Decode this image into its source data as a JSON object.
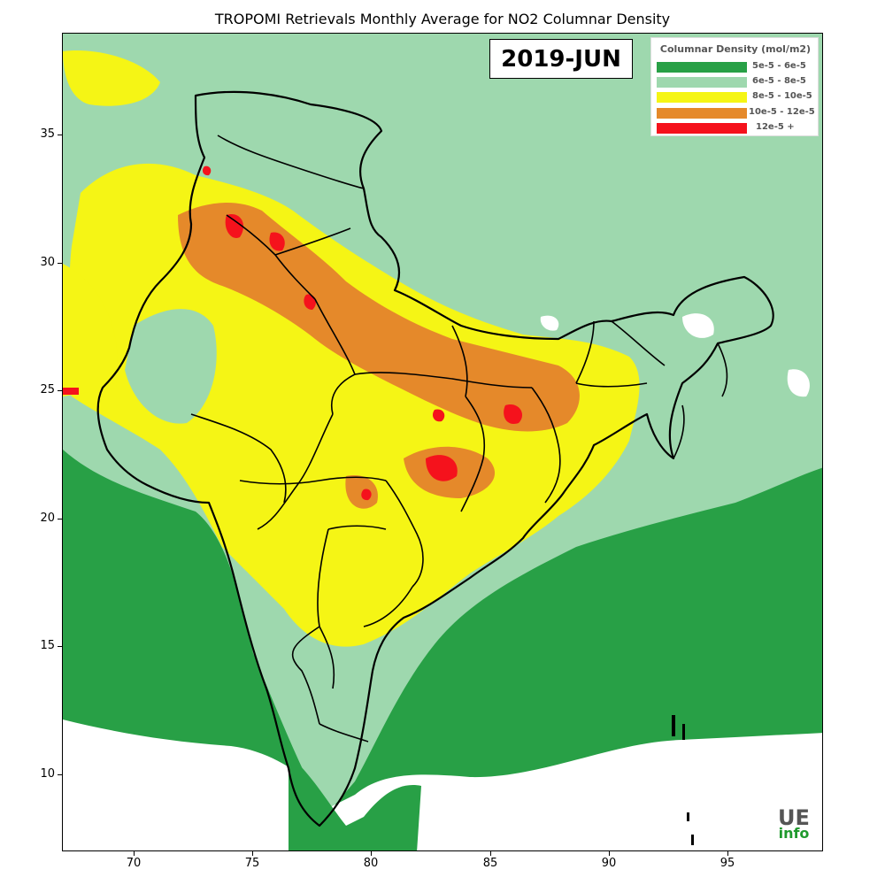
{
  "title": "TROPOMI Retrievals Monthly Average for NO2 Columnar Density",
  "period_label": "2019-JUN",
  "legend": {
    "title": "Columnar Density (mol/m2)",
    "items": [
      {
        "label": "5e-5 - 6e-5",
        "color": "#28a046"
      },
      {
        "label": "6e-5 - 8e-5",
        "color": "#9ed8ae"
      },
      {
        "label": "8e-5 - 10e-5",
        "color": "#f5f515"
      },
      {
        "label": "10e-5 - 12e-5",
        "color": "#e5892a"
      },
      {
        "label": "12e-5 +",
        "color": "#f5121c"
      }
    ]
  },
  "axes": {
    "lon_range": [
      67,
      99
    ],
    "lat_range": [
      7,
      39
    ],
    "x_ticks": [
      "70",
      "75",
      "80",
      "85",
      "90",
      "95"
    ],
    "y_ticks": [
      "35",
      "30",
      "25",
      "20",
      "15",
      "10"
    ]
  },
  "logo": {
    "top": "UE",
    "bottom": "info"
  }
}
